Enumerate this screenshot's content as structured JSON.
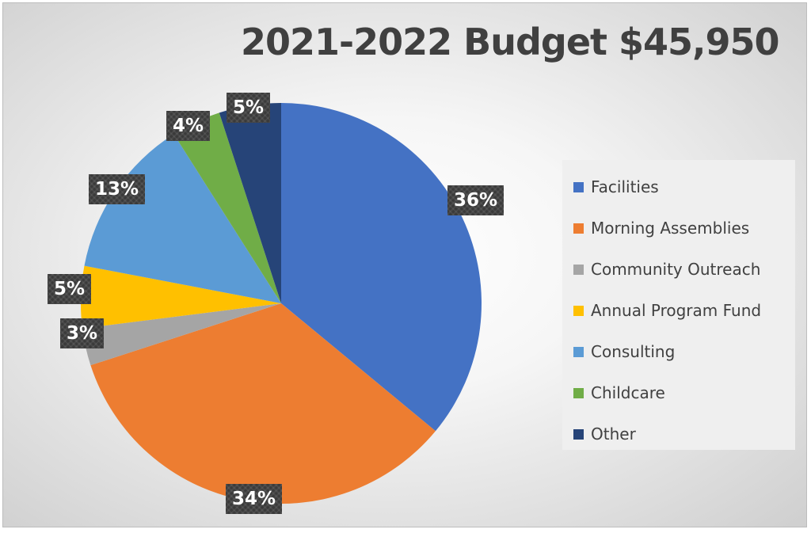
{
  "chart_data": {
    "type": "pie",
    "title": "2021-2022 Budget $45,950",
    "legend_position": "right",
    "slices": [
      {
        "name": "Facilities",
        "value": 36,
        "label": "36%",
        "color": "#4472C4"
      },
      {
        "name": "Morning Assemblies",
        "value": 34,
        "label": "34%",
        "color": "#ED7D31"
      },
      {
        "name": "Community Outreach",
        "value": 3,
        "label": "3%",
        "color": "#A5A5A5"
      },
      {
        "name": "Annual Program Fund",
        "value": 5,
        "label": "5%",
        "color": "#FFC000"
      },
      {
        "name": "Consulting",
        "value": 13,
        "label": "13%",
        "color": "#5B9BD5"
      },
      {
        "name": "Childcare",
        "value": 4,
        "label": "4%",
        "color": "#70AD47"
      },
      {
        "name": "Other",
        "value": 5,
        "label": "5%",
        "color": "#264478"
      }
    ]
  }
}
